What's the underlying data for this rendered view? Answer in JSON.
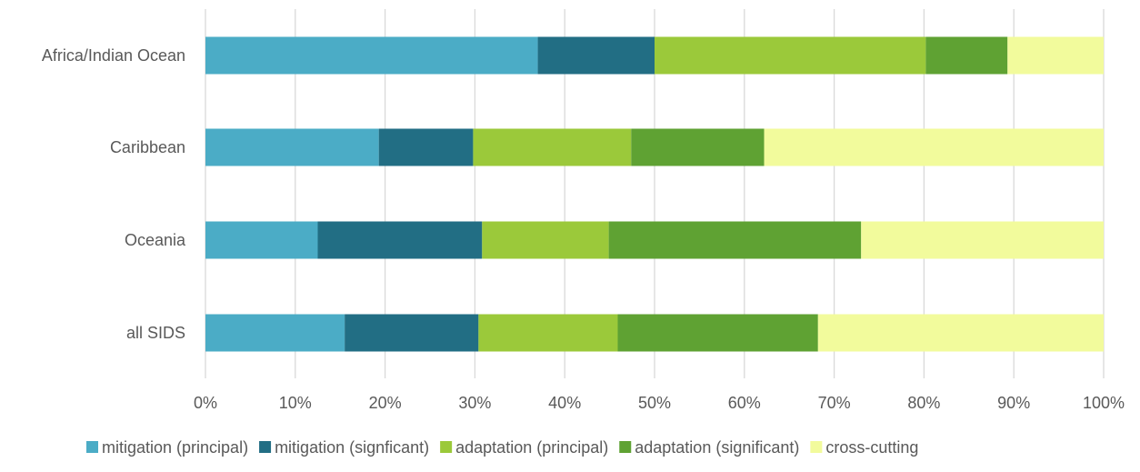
{
  "chart_data": {
    "type": "bar",
    "orientation": "horizontal",
    "stacked": "percent",
    "categories": [
      "Africa/Indian Ocean",
      "Caribbean",
      "Oceania",
      "all SIDS"
    ],
    "series": [
      {
        "name": "mitigation (principal)",
        "color": "#4BACC6",
        "values": [
          37,
          19.3,
          12.5,
          15.5
        ]
      },
      {
        "name": "mitigation (signficant)",
        "color": "#226E84",
        "values": [
          13,
          10.5,
          18.3,
          14.9
        ]
      },
      {
        "name": "adaptation (principal)",
        "color": "#9BC93A",
        "values": [
          30.2,
          17.6,
          14.1,
          15.5
        ]
      },
      {
        "name": "adaptation (significant)",
        "color": "#5FA233",
        "values": [
          9.1,
          14.8,
          28.1,
          22.3
        ]
      },
      {
        "name": "cross-cutting",
        "color": "#F2FB9C",
        "values": [
          10.7,
          37.8,
          27,
          31.8
        ]
      }
    ],
    "xlim": [
      0,
      100
    ],
    "xticks": [
      "0%",
      "10%",
      "20%",
      "30%",
      "40%",
      "50%",
      "60%",
      "70%",
      "80%",
      "90%",
      "100%"
    ],
    "grid": "vertical",
    "legend": "bottom",
    "title": "",
    "xlabel": "",
    "ylabel": ""
  }
}
